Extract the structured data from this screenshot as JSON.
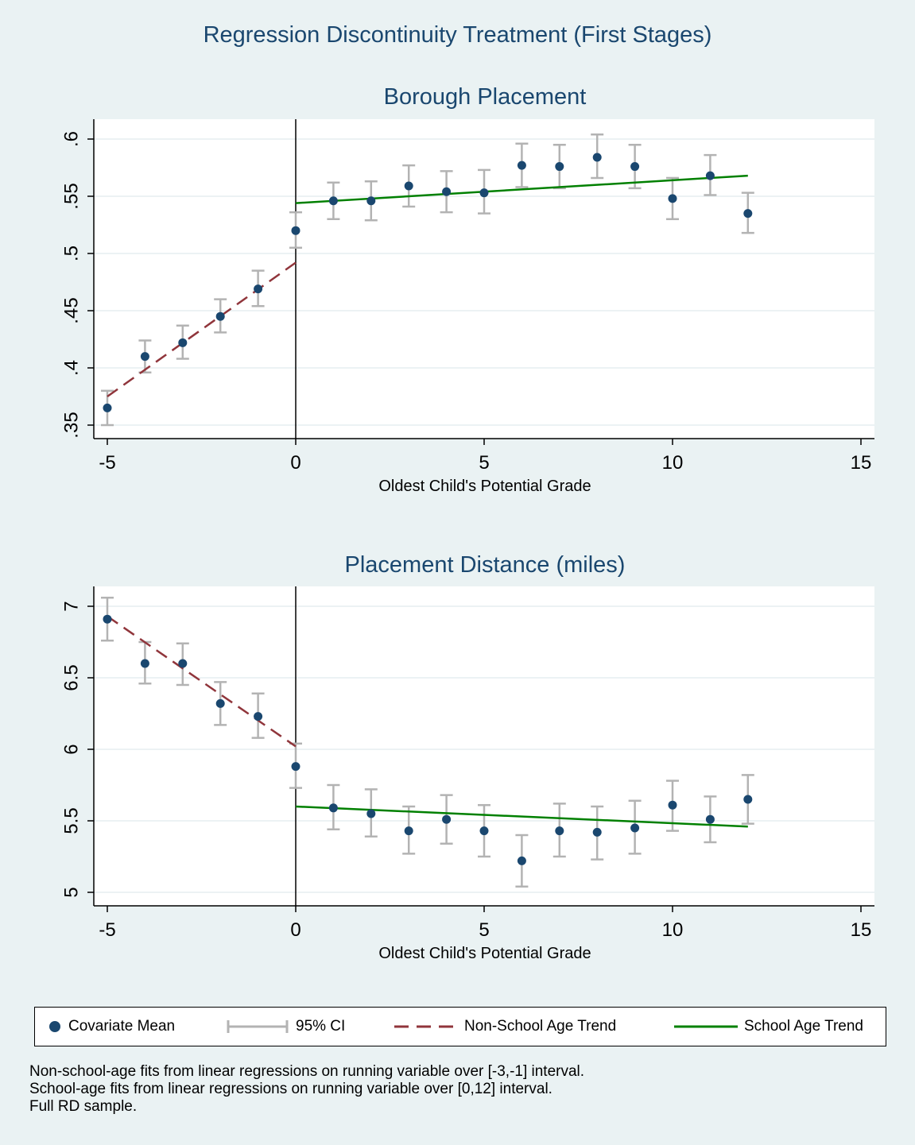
{
  "figure": {
    "title": "Regression Discontinuity Treatment (First Stages)",
    "notes": [
      "Non-school-age fits from linear regressions on running variable over [-3,-1] interval.",
      "School-age fits from linear regressions on running variable over [0,12] interval.",
      "Full RD sample."
    ]
  },
  "legend": {
    "items": [
      {
        "label": "Covariate Mean",
        "symbol": "dot"
      },
      {
        "label": "95% CI",
        "symbol": "ci"
      },
      {
        "label": "Non-School Age Trend",
        "symbol": "dash"
      },
      {
        "label": "School Age Trend",
        "symbol": "solid"
      }
    ]
  },
  "colors": {
    "background": "#eaf2f3",
    "plot_background": "#ffffff",
    "title": "#1a476f",
    "marker": "#1a476f",
    "ci": "#b3b3b3",
    "non_school_trend": "#90353b",
    "school_trend": "#008000",
    "grid": "#e6eef0"
  },
  "chart_data": [
    {
      "type": "scatter",
      "title": "Borough Placement",
      "xlabel": "Oldest Child's Potential Grade",
      "ylabel": "",
      "xlim": [
        -5,
        15
      ],
      "ylim": [
        0.35,
        0.6
      ],
      "xticks": [
        -5,
        0,
        5,
        10,
        15
      ],
      "xtick_labels": [
        "-5",
        "0",
        "5",
        "10",
        "15"
      ],
      "yticks": [
        0.35,
        0.4,
        0.45,
        0.5,
        0.55,
        0.6
      ],
      "ytick_labels": [
        ".35",
        ".4",
        ".45",
        ".5",
        ".55",
        ".6"
      ],
      "cutoff": 0,
      "grid": true,
      "x": [
        -5,
        -4,
        -3,
        -2,
        -1,
        0,
        1,
        2,
        3,
        4,
        5,
        6,
        7,
        8,
        9,
        10,
        11,
        12
      ],
      "mean": [
        0.365,
        0.41,
        0.422,
        0.445,
        0.469,
        0.52,
        0.546,
        0.546,
        0.559,
        0.554,
        0.553,
        0.577,
        0.576,
        0.584,
        0.576,
        0.548,
        0.568,
        0.535
      ],
      "ci_low": [
        0.35,
        0.396,
        0.408,
        0.431,
        0.454,
        0.505,
        0.53,
        0.529,
        0.541,
        0.536,
        0.535,
        0.558,
        0.557,
        0.566,
        0.557,
        0.53,
        0.551,
        0.518
      ],
      "ci_high": [
        0.38,
        0.424,
        0.437,
        0.46,
        0.485,
        0.536,
        0.562,
        0.563,
        0.577,
        0.572,
        0.573,
        0.596,
        0.595,
        0.604,
        0.595,
        0.566,
        0.586,
        0.553
      ],
      "non_school_trend": {
        "x": [
          -5,
          0
        ],
        "y": [
          0.375,
          0.492
        ]
      },
      "school_trend": {
        "x": [
          0,
          12
        ],
        "y": [
          0.544,
          0.568
        ]
      }
    },
    {
      "type": "scatter",
      "title": "Placement Distance (miles)",
      "xlabel": "Oldest Child's Potential Grade",
      "ylabel": "",
      "xlim": [
        -5,
        15
      ],
      "ylim": [
        5,
        7
      ],
      "xticks": [
        -5,
        0,
        5,
        10,
        15
      ],
      "xtick_labels": [
        "-5",
        "0",
        "5",
        "10",
        "15"
      ],
      "yticks": [
        5,
        5.5,
        6,
        6.5,
        7
      ],
      "ytick_labels": [
        "5",
        "5.5",
        "6",
        "6.5",
        "7"
      ],
      "cutoff": 0,
      "grid": true,
      "x": [
        -5,
        -4,
        -3,
        -2,
        -1,
        0,
        1,
        2,
        3,
        4,
        5,
        6,
        7,
        8,
        9,
        10,
        11,
        12
      ],
      "mean": [
        6.91,
        6.6,
        6.6,
        6.32,
        6.23,
        5.88,
        5.59,
        5.55,
        5.43,
        5.51,
        5.43,
        5.22,
        5.43,
        5.42,
        5.45,
        5.61,
        5.51,
        5.65
      ],
      "ci_low": [
        6.76,
        6.46,
        6.45,
        6.17,
        6.08,
        5.73,
        5.44,
        5.39,
        5.27,
        5.34,
        5.25,
        5.04,
        5.25,
        5.23,
        5.27,
        5.43,
        5.35,
        5.48
      ],
      "ci_high": [
        7.06,
        6.75,
        6.74,
        6.47,
        6.39,
        6.04,
        5.75,
        5.72,
        5.6,
        5.68,
        5.61,
        5.4,
        5.62,
        5.6,
        5.64,
        5.78,
        5.67,
        5.82
      ],
      "non_school_trend": {
        "x": [
          -5,
          0
        ],
        "y": [
          6.93,
          6.02
        ]
      },
      "school_trend": {
        "x": [
          0,
          12
        ],
        "y": [
          5.6,
          5.46
        ]
      }
    }
  ]
}
